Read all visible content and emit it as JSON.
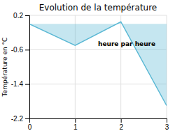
{
  "chart_data": {
    "type": "area",
    "title": "Evolution de la température",
    "y_label": "Température en °C",
    "annotation": "heure par heure",
    "x": [
      0,
      1,
      2,
      3
    ],
    "values": [
      0.0,
      -0.5,
      0.05,
      -1.9
    ],
    "color": "#5ab8d4",
    "xlim": [
      0,
      3
    ],
    "ylim": [
      -2.2,
      0.2
    ],
    "xticks": [
      0,
      1,
      2,
      3
    ],
    "yticks": [
      0.2,
      -0.6,
      -1.4,
      -2.2
    ],
    "grid": true
  }
}
